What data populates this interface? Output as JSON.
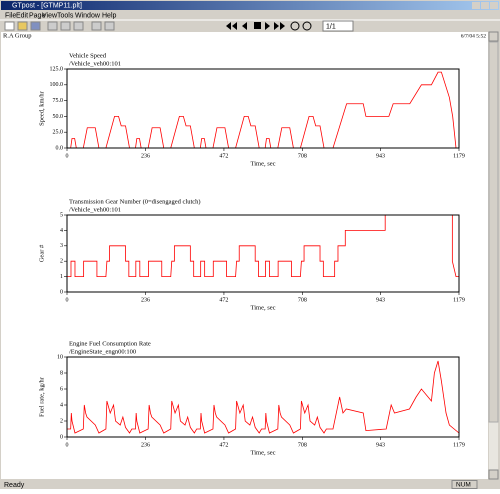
{
  "window": {
    "title": "GTpost - [GTMP11.plt]",
    "menu": [
      "File",
      "Edit",
      "Page",
      "View",
      "Tools",
      "Window",
      "Help"
    ],
    "page_field": "1/1",
    "header_left": "R.A Group",
    "header_right": "6/7/04 5:52",
    "status": "Ready",
    "status_num": "NUM"
  },
  "chart_data": [
    {
      "type": "line",
      "title": "Vehicle Speed",
      "subtitle": "/Vehicle_veh00:101",
      "x_label": "Time, sec",
      "y_label": "Speed, km/hr",
      "color": "#ff0000",
      "xlim": [
        0,
        1179
      ],
      "xticks": [
        0,
        236,
        472,
        708,
        943,
        1179
      ],
      "ylim": [
        0,
        125
      ],
      "yticks": [
        {
          "value": 0,
          "label": "0.0"
        },
        {
          "value": 25,
          "label": "25.0"
        },
        {
          "value": 50,
          "label": "50.0"
        },
        {
          "value": 75,
          "label": "75.0"
        },
        {
          "value": 100,
          "label": "100.0"
        },
        {
          "value": 125,
          "label": "125.0"
        }
      ],
      "x": [
        0,
        11,
        15,
        23,
        28,
        49,
        61,
        85,
        96,
        117,
        143,
        155,
        163,
        176,
        188,
        195,
        206,
        210,
        218,
        223,
        244,
        256,
        280,
        291,
        312,
        338,
        350,
        358,
        371,
        383,
        390,
        401,
        405,
        413,
        418,
        439,
        451,
        475,
        486,
        507,
        533,
        545,
        553,
        566,
        578,
        585,
        596,
        600,
        608,
        613,
        634,
        646,
        670,
        681,
        702,
        728,
        740,
        748,
        761,
        773,
        780,
        800,
        841,
        891,
        899,
        968,
        981,
        1031,
        1066,
        1096,
        1116,
        1126,
        1150,
        1160,
        1170,
        1179
      ],
      "values": [
        0,
        0,
        15,
        15,
        0,
        0,
        32,
        32,
        0,
        0,
        50,
        50,
        35,
        35,
        0,
        0,
        0,
        15,
        15,
        0,
        0,
        32,
        32,
        0,
        0,
        50,
        50,
        35,
        35,
        0,
        0,
        0,
        15,
        15,
        0,
        0,
        32,
        32,
        0,
        0,
        50,
        50,
        35,
        35,
        0,
        0,
        0,
        15,
        15,
        0,
        0,
        32,
        32,
        0,
        0,
        50,
        50,
        35,
        35,
        0,
        0,
        0,
        70,
        70,
        50,
        50,
        70,
        70,
        100,
        100,
        120,
        120,
        80,
        50,
        0,
        0
      ]
    },
    {
      "type": "line",
      "title": "Transmission Gear Number (0=disengaged clutch)",
      "subtitle": "/Vehicle_veh00:101",
      "x_label": "Time, sec",
      "y_label": "Gear #",
      "color": "#ff0000",
      "xlim": [
        0,
        1179
      ],
      "xticks": [
        0,
        236,
        472,
        708,
        943,
        1179
      ],
      "ylim": [
        0,
        5
      ],
      "yticks": [
        0,
        1,
        2,
        3,
        4,
        5
      ],
      "x": [
        0,
        12,
        12,
        24,
        24,
        50,
        50,
        90,
        90,
        117,
        120,
        128,
        128,
        176,
        176,
        186,
        186,
        195,
        207,
        207,
        219,
        219,
        245,
        245,
        285,
        285,
        312,
        315,
        323,
        323,
        371,
        371,
        381,
        381,
        390,
        402,
        402,
        414,
        414,
        440,
        440,
        480,
        480,
        507,
        510,
        518,
        518,
        566,
        566,
        576,
        576,
        585,
        597,
        597,
        609,
        609,
        635,
        635,
        675,
        675,
        702,
        705,
        713,
        713,
        761,
        761,
        771,
        771,
        780,
        805,
        805,
        815,
        815,
        837,
        837,
        957,
        957,
        1159,
        1159,
        1170,
        1179
      ],
      "values": [
        1,
        1,
        2,
        2,
        1,
        1,
        2,
        2,
        1,
        1,
        2,
        2,
        3,
        3,
        2,
        2,
        1,
        1,
        1,
        2,
        2,
        1,
        1,
        2,
        2,
        1,
        1,
        2,
        2,
        3,
        3,
        2,
        2,
        1,
        1,
        1,
        2,
        2,
        1,
        1,
        2,
        2,
        1,
        1,
        2,
        2,
        3,
        3,
        2,
        2,
        1,
        1,
        1,
        2,
        2,
        1,
        1,
        2,
        2,
        1,
        1,
        2,
        2,
        3,
        3,
        2,
        2,
        1,
        1,
        1,
        2,
        2,
        3,
        3,
        4,
        4,
        5,
        5,
        2,
        1,
        1
      ]
    },
    {
      "type": "line",
      "title": "Engine Fuel Consumption Rate",
      "subtitle": "/EngineState_engn00:100",
      "x_label": "Time, sec",
      "y_label": "Fuel rate, kg/hr",
      "color": "#ff0000",
      "xlim": [
        0,
        1179
      ],
      "xticks": [
        0,
        236,
        472,
        708,
        943,
        1179
      ],
      "ylim": [
        0,
        10
      ],
      "yticks": [
        0,
        2,
        4,
        6,
        8,
        10
      ],
      "x": [
        0,
        11,
        13,
        15,
        24,
        49,
        52,
        56,
        60,
        85,
        96,
        117,
        120,
        130,
        140,
        146,
        160,
        168,
        176,
        188,
        195,
        206,
        208,
        210,
        219,
        244,
        247,
        251,
        255,
        280,
        291,
        312,
        315,
        325,
        335,
        341,
        355,
        363,
        371,
        383,
        390,
        401,
        403,
        405,
        414,
        439,
        442,
        446,
        450,
        475,
        486,
        507,
        510,
        520,
        530,
        536,
        550,
        558,
        566,
        578,
        585,
        596,
        598,
        600,
        609,
        634,
        637,
        641,
        645,
        670,
        681,
        702,
        705,
        715,
        725,
        731,
        745,
        753,
        761,
        773,
        780,
        800,
        820,
        830,
        840,
        891,
        899,
        960,
        975,
        985,
        1030,
        1050,
        1066,
        1096,
        1105,
        1116,
        1126,
        1140,
        1150,
        1179
      ],
      "values": [
        1,
        1,
        3,
        2,
        0.5,
        1,
        4,
        3,
        2.5,
        1.5,
        0.5,
        1,
        4.5,
        3,
        4,
        2,
        1.5,
        2.5,
        1.2,
        0.5,
        1,
        1,
        3,
        2,
        0.5,
        1,
        4,
        3,
        2.5,
        1.5,
        0.5,
        1,
        4.5,
        3,
        4,
        2,
        1.5,
        2.5,
        1.2,
        0.5,
        1,
        1,
        3,
        2,
        0.5,
        1,
        4,
        3,
        2.5,
        1.5,
        0.5,
        1,
        4.5,
        3,
        4,
        2,
        1.5,
        2.5,
        1.2,
        0.5,
        1,
        1,
        3,
        2,
        0.5,
        1,
        4,
        3,
        2.5,
        1.5,
        0.5,
        1,
        4.5,
        3,
        4,
        2,
        1.5,
        2.5,
        1.2,
        0.5,
        1,
        1,
        5,
        3,
        3.5,
        3,
        0.8,
        1,
        4,
        3,
        3.5,
        5,
        6,
        4.5,
        8,
        9.5,
        7,
        3,
        1.5,
        0.5
      ]
    }
  ]
}
